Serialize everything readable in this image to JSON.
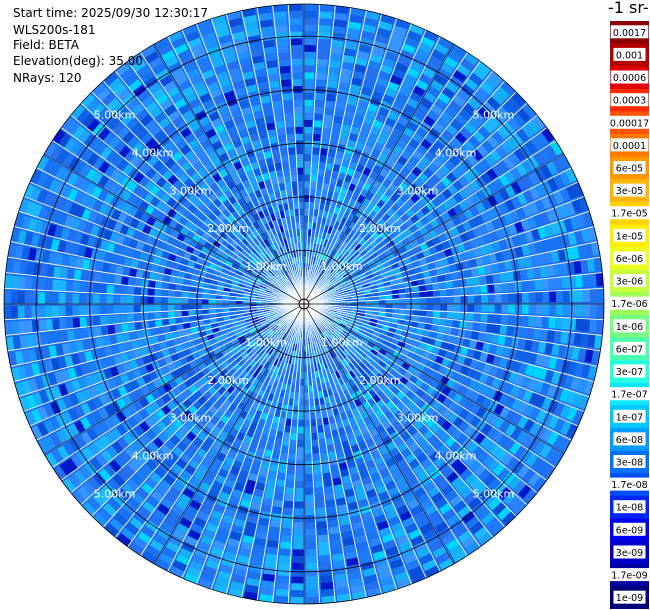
{
  "header": {
    "start_time": "Start time: 2025/09/30 12:30:17",
    "instrument": "WLS200s-181",
    "field": "Field: BETA",
    "elevation": "Elevation(deg): 35.00",
    "nrays": "NRays: 120"
  },
  "colorbar": {
    "unit_label": "-1 sr-",
    "labels": [
      "0.0017",
      "0.001",
      "0.0006",
      "0.0003",
      "0.00017",
      "0.0001",
      "6e-05",
      "3e-05",
      "1.7e-05",
      "1e-05",
      "6e-06",
      "3e-06",
      "1.7e-06",
      "1e-06",
      "6e-07",
      "3e-07",
      "1.7e-07",
      "1e-07",
      "6e-08",
      "3e-08",
      "1.7e-08",
      "1e-08",
      "6e-09",
      "3e-09",
      "1.7e-09",
      "1e-09"
    ],
    "colors": [
      "#8b0000",
      "#b40000",
      "#e00000",
      "#ff2a00",
      "#ff5500",
      "#ff7800",
      "#ff9900",
      "#ffb400",
      "#ffd200",
      "#ffee00",
      "#eaff20",
      "#c4ff3a",
      "#9cff5a",
      "#74ff80",
      "#4cffb0",
      "#28ffe0",
      "#10e6ff",
      "#00c8ff",
      "#009cff",
      "#0072ff",
      "#004cff",
      "#0026ff",
      "#0000f0",
      "#0000c8",
      "#0000a0",
      "#000078"
    ]
  },
  "chart_data": {
    "type": "heatmap",
    "projection": "polar PPI",
    "range_ring_labels": [
      "1.00km",
      "2.00km",
      "3.00km",
      "4.00km",
      "5.00km"
    ],
    "range_max_km": 5.6,
    "nrays": 120,
    "value_range": [
      1e-09,
      0.0017
    ],
    "dominant_value_range": [
      1e-08,
      1e-07
    ],
    "grid": true
  }
}
